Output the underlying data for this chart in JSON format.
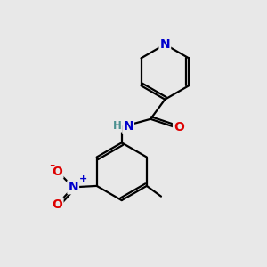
{
  "bg_color": "#e8e8e8",
  "atom_colors": {
    "C": "#000000",
    "N": "#0000cc",
    "O": "#dd0000",
    "H": "#4a9090"
  },
  "bond_color": "#000000",
  "bond_width": 1.6,
  "font_size_atom": 10,
  "font_size_small": 8.5
}
